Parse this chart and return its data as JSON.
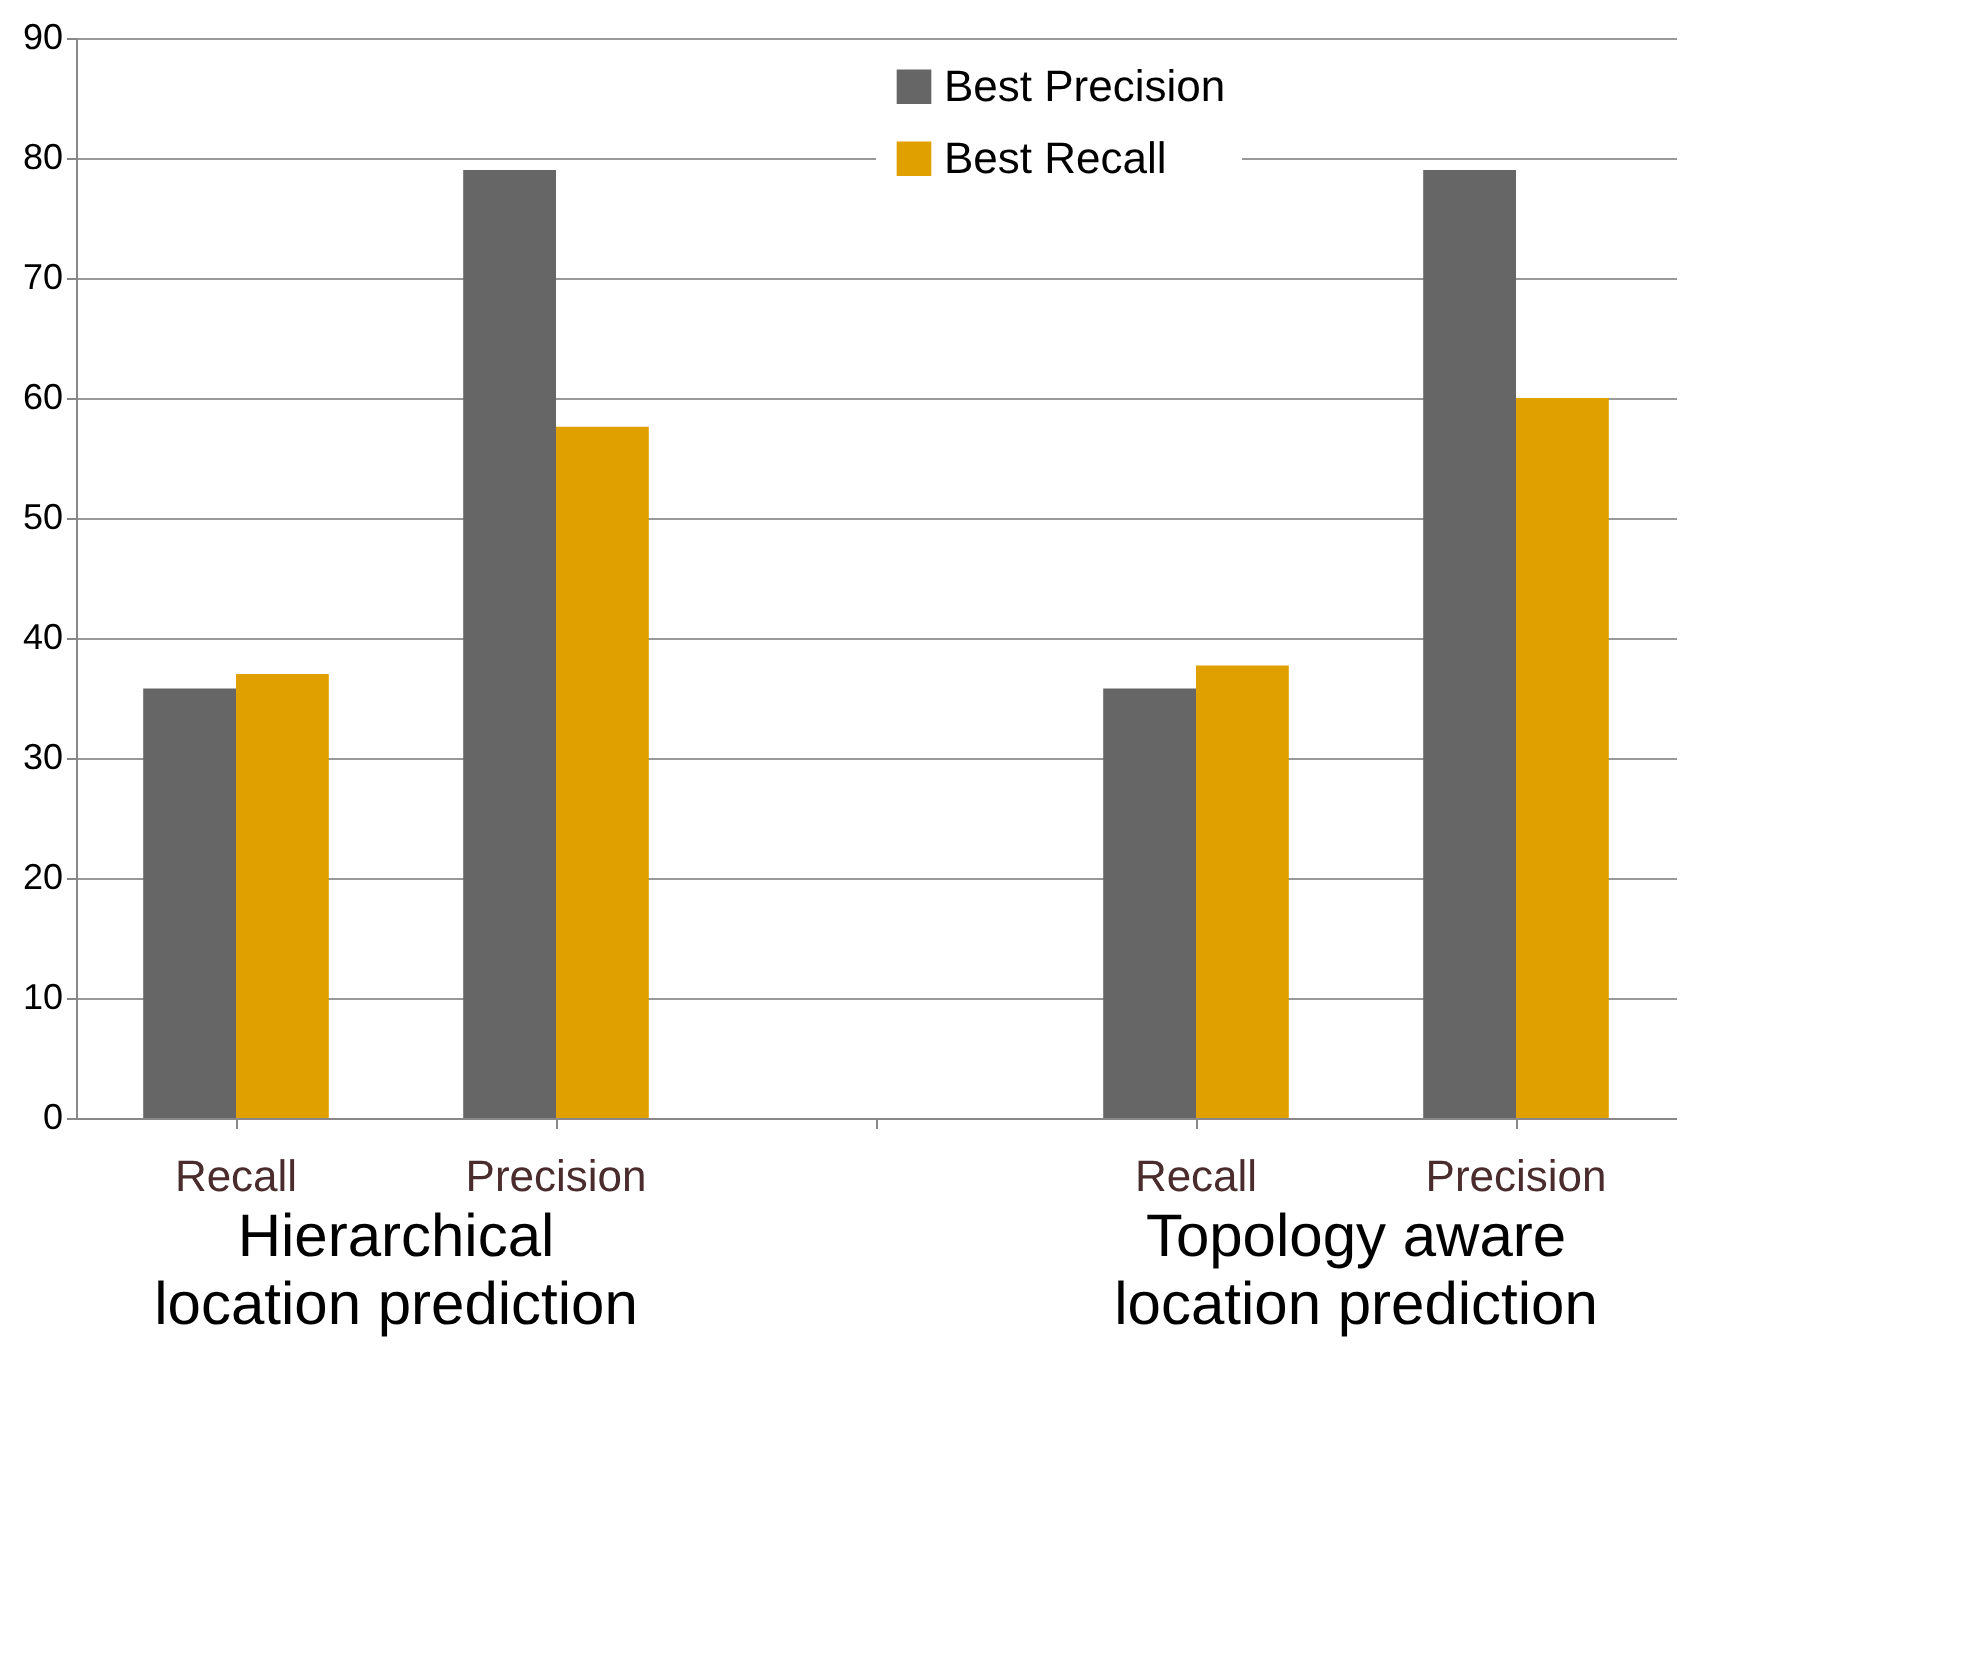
{
  "chart_data": {
    "type": "bar",
    "categories": [
      "Recall",
      "Precision",
      null,
      "Recall",
      "Precision"
    ],
    "series": [
      {
        "name": "Best Precision",
        "color": "#666666",
        "values": [
          35.8,
          79,
          null,
          35.8,
          79
        ]
      },
      {
        "name": "Best Recall",
        "color": "#e0a000",
        "values": [
          37,
          57.6,
          null,
          37.7,
          60
        ]
      }
    ],
    "ylim": [
      0,
      90
    ],
    "yticks": [
      0,
      10,
      20,
      30,
      40,
      50,
      60,
      70,
      80,
      90
    ],
    "grid": "y",
    "legend": "top right",
    "annotations": [
      "Hierarchical location prediction",
      "Topology aware location prediction"
    ]
  }
}
